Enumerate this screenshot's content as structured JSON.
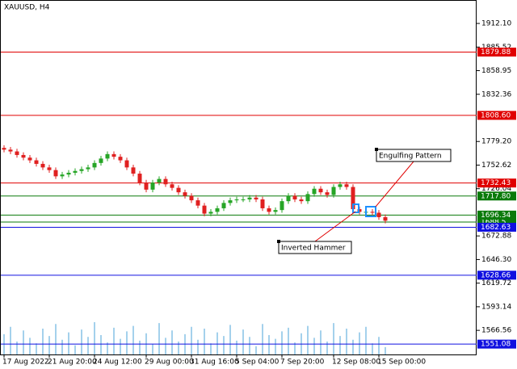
{
  "chart_data": {
    "type": "candlestick",
    "title": "XAUUSD, H4",
    "up_color": "#26a526",
    "down_color": "#e02020",
    "volume_color": "#4aa3d8",
    "categories": [
      "17 Aug 2022",
      null,
      null,
      null,
      null,
      null,
      null,
      "21 Aug 20:00",
      null,
      null,
      null,
      null,
      null,
      null,
      "24 Aug 12:00",
      null,
      null,
      null,
      null,
      null,
      null,
      null,
      "29 Aug 00:00",
      null,
      null,
      null,
      null,
      null,
      null,
      "31 Aug 16:00",
      null,
      null,
      null,
      null,
      null,
      null,
      "5 Sep 04:00",
      null,
      null,
      null,
      null,
      null,
      null,
      "7 Sep 20:00",
      null,
      null,
      null,
      null,
      null,
      null,
      null,
      "12 Sep 08:00",
      null,
      null,
      null,
      null,
      null,
      null,
      "15 Sep 00:00",
      null
    ],
    "open": [
      1772,
      1770,
      1768,
      1764,
      1761,
      1758,
      1754,
      1750,
      1747,
      1740,
      1742,
      1744,
      1746,
      1748,
      1750,
      1755,
      1760,
      1765,
      1762,
      1758,
      1750,
      1743,
      1733,
      1725,
      1733,
      1737,
      1731,
      1727,
      1722,
      1718,
      1713,
      1707,
      1698,
      1700,
      1704,
      1710,
      1713,
      1714,
      1714,
      1716,
      1714,
      1704,
      1700,
      1702,
      1712,
      1718,
      1714,
      1712,
      1720,
      1726,
      1722,
      1719,
      1728,
      1731,
      1728,
      1703,
      1700,
      1700,
      1699,
      1694
    ],
    "high": [
      1775,
      1773,
      1771,
      1767,
      1764,
      1761,
      1757,
      1753,
      1750,
      1745,
      1747,
      1749,
      1751,
      1753,
      1758,
      1763,
      1768,
      1768,
      1765,
      1761,
      1753,
      1746,
      1736,
      1736,
      1740,
      1740,
      1734,
      1730,
      1725,
      1721,
      1716,
      1710,
      1703,
      1707,
      1713,
      1716,
      1717,
      1717,
      1719,
      1719,
      1717,
      1707,
      1705,
      1715,
      1721,
      1721,
      1717,
      1723,
      1729,
      1729,
      1725,
      1731,
      1734,
      1734,
      1731,
      1706,
      1703,
      1703,
      1702,
      1697
    ],
    "low": [
      1767,
      1765,
      1761,
      1758,
      1755,
      1751,
      1747,
      1744,
      1737,
      1737,
      1739,
      1741,
      1743,
      1745,
      1747,
      1752,
      1757,
      1759,
      1755,
      1747,
      1740,
      1730,
      1722,
      1722,
      1730,
      1728,
      1724,
      1719,
      1715,
      1710,
      1704,
      1695,
      1695,
      1697,
      1701,
      1707,
      1710,
      1711,
      1711,
      1711,
      1701,
      1697,
      1697,
      1699,
      1709,
      1711,
      1709,
      1709,
      1717,
      1719,
      1716,
      1716,
      1725,
      1725,
      1700,
      1697,
      1697,
      1696,
      1691,
      1687
    ],
    "close": [
      1770,
      1768,
      1764,
      1761,
      1758,
      1754,
      1750,
      1747,
      1740,
      1742,
      1744,
      1746,
      1748,
      1750,
      1755,
      1760,
      1765,
      1762,
      1758,
      1750,
      1743,
      1733,
      1725,
      1733,
      1737,
      1731,
      1727,
      1722,
      1718,
      1713,
      1707,
      1698,
      1700,
      1704,
      1710,
      1713,
      1714,
      1714,
      1716,
      1714,
      1704,
      1700,
      1702,
      1712,
      1718,
      1714,
      1712,
      1720,
      1726,
      1722,
      1719,
      1728,
      1731,
      1728,
      1703,
      1700,
      1700,
      1699,
      1694,
      1690
    ],
    "volume": [
      22,
      30,
      14,
      26,
      18,
      12,
      28,
      20,
      33,
      16,
      24,
      10,
      27,
      19,
      35,
      21,
      13,
      29,
      17,
      25,
      31,
      15,
      23,
      11,
      34,
      18,
      26,
      14,
      22,
      30,
      16,
      28,
      12,
      24,
      20,
      32,
      15,
      27,
      19,
      9,
      33,
      21,
      17,
      25,
      29,
      13,
      23,
      31,
      18,
      26,
      14,
      34,
      20,
      28,
      16,
      24,
      30,
      12,
      19,
      8
    ],
    "ylim": [
      1538.5,
      1938.5
    ],
    "yticks": [
      {
        "value": 1912.1,
        "label": "1912.10"
      },
      1885.52,
      1858.95,
      1832.36,
      {
        "value": 1779.2,
        "label": "1779.20"
      },
      1752.62,
      1726.04,
      1672.88,
      {
        "value": 1646.3,
        "label": "1646.30"
      },
      1619.72,
      1593.14,
      1566.56
    ],
    "levels": [
      {
        "value": 1879.88,
        "color": "#e00000"
      },
      {
        "value": 1808.6,
        "label": "1808.60",
        "color": "#e00000"
      },
      {
        "value": 1732.43,
        "color": "#e00000"
      },
      {
        "value": 1717.8,
        "label": "1717.80",
        "color": "#0a7a0a"
      },
      {
        "value": 1688.5,
        "color": "#0a7a0a"
      },
      {
        "value": 1696.34,
        "color": "#0a7a0a"
      },
      {
        "value": 1682.63,
        "color": "#1010e0"
      },
      {
        "value": 1628.66,
        "color": "#1010e0"
      },
      {
        "value": 1551.08,
        "color": "#1010e0"
      }
    ],
    "annotations": [
      "Engulfing Pattern",
      "Inverted Hammer"
    ]
  }
}
